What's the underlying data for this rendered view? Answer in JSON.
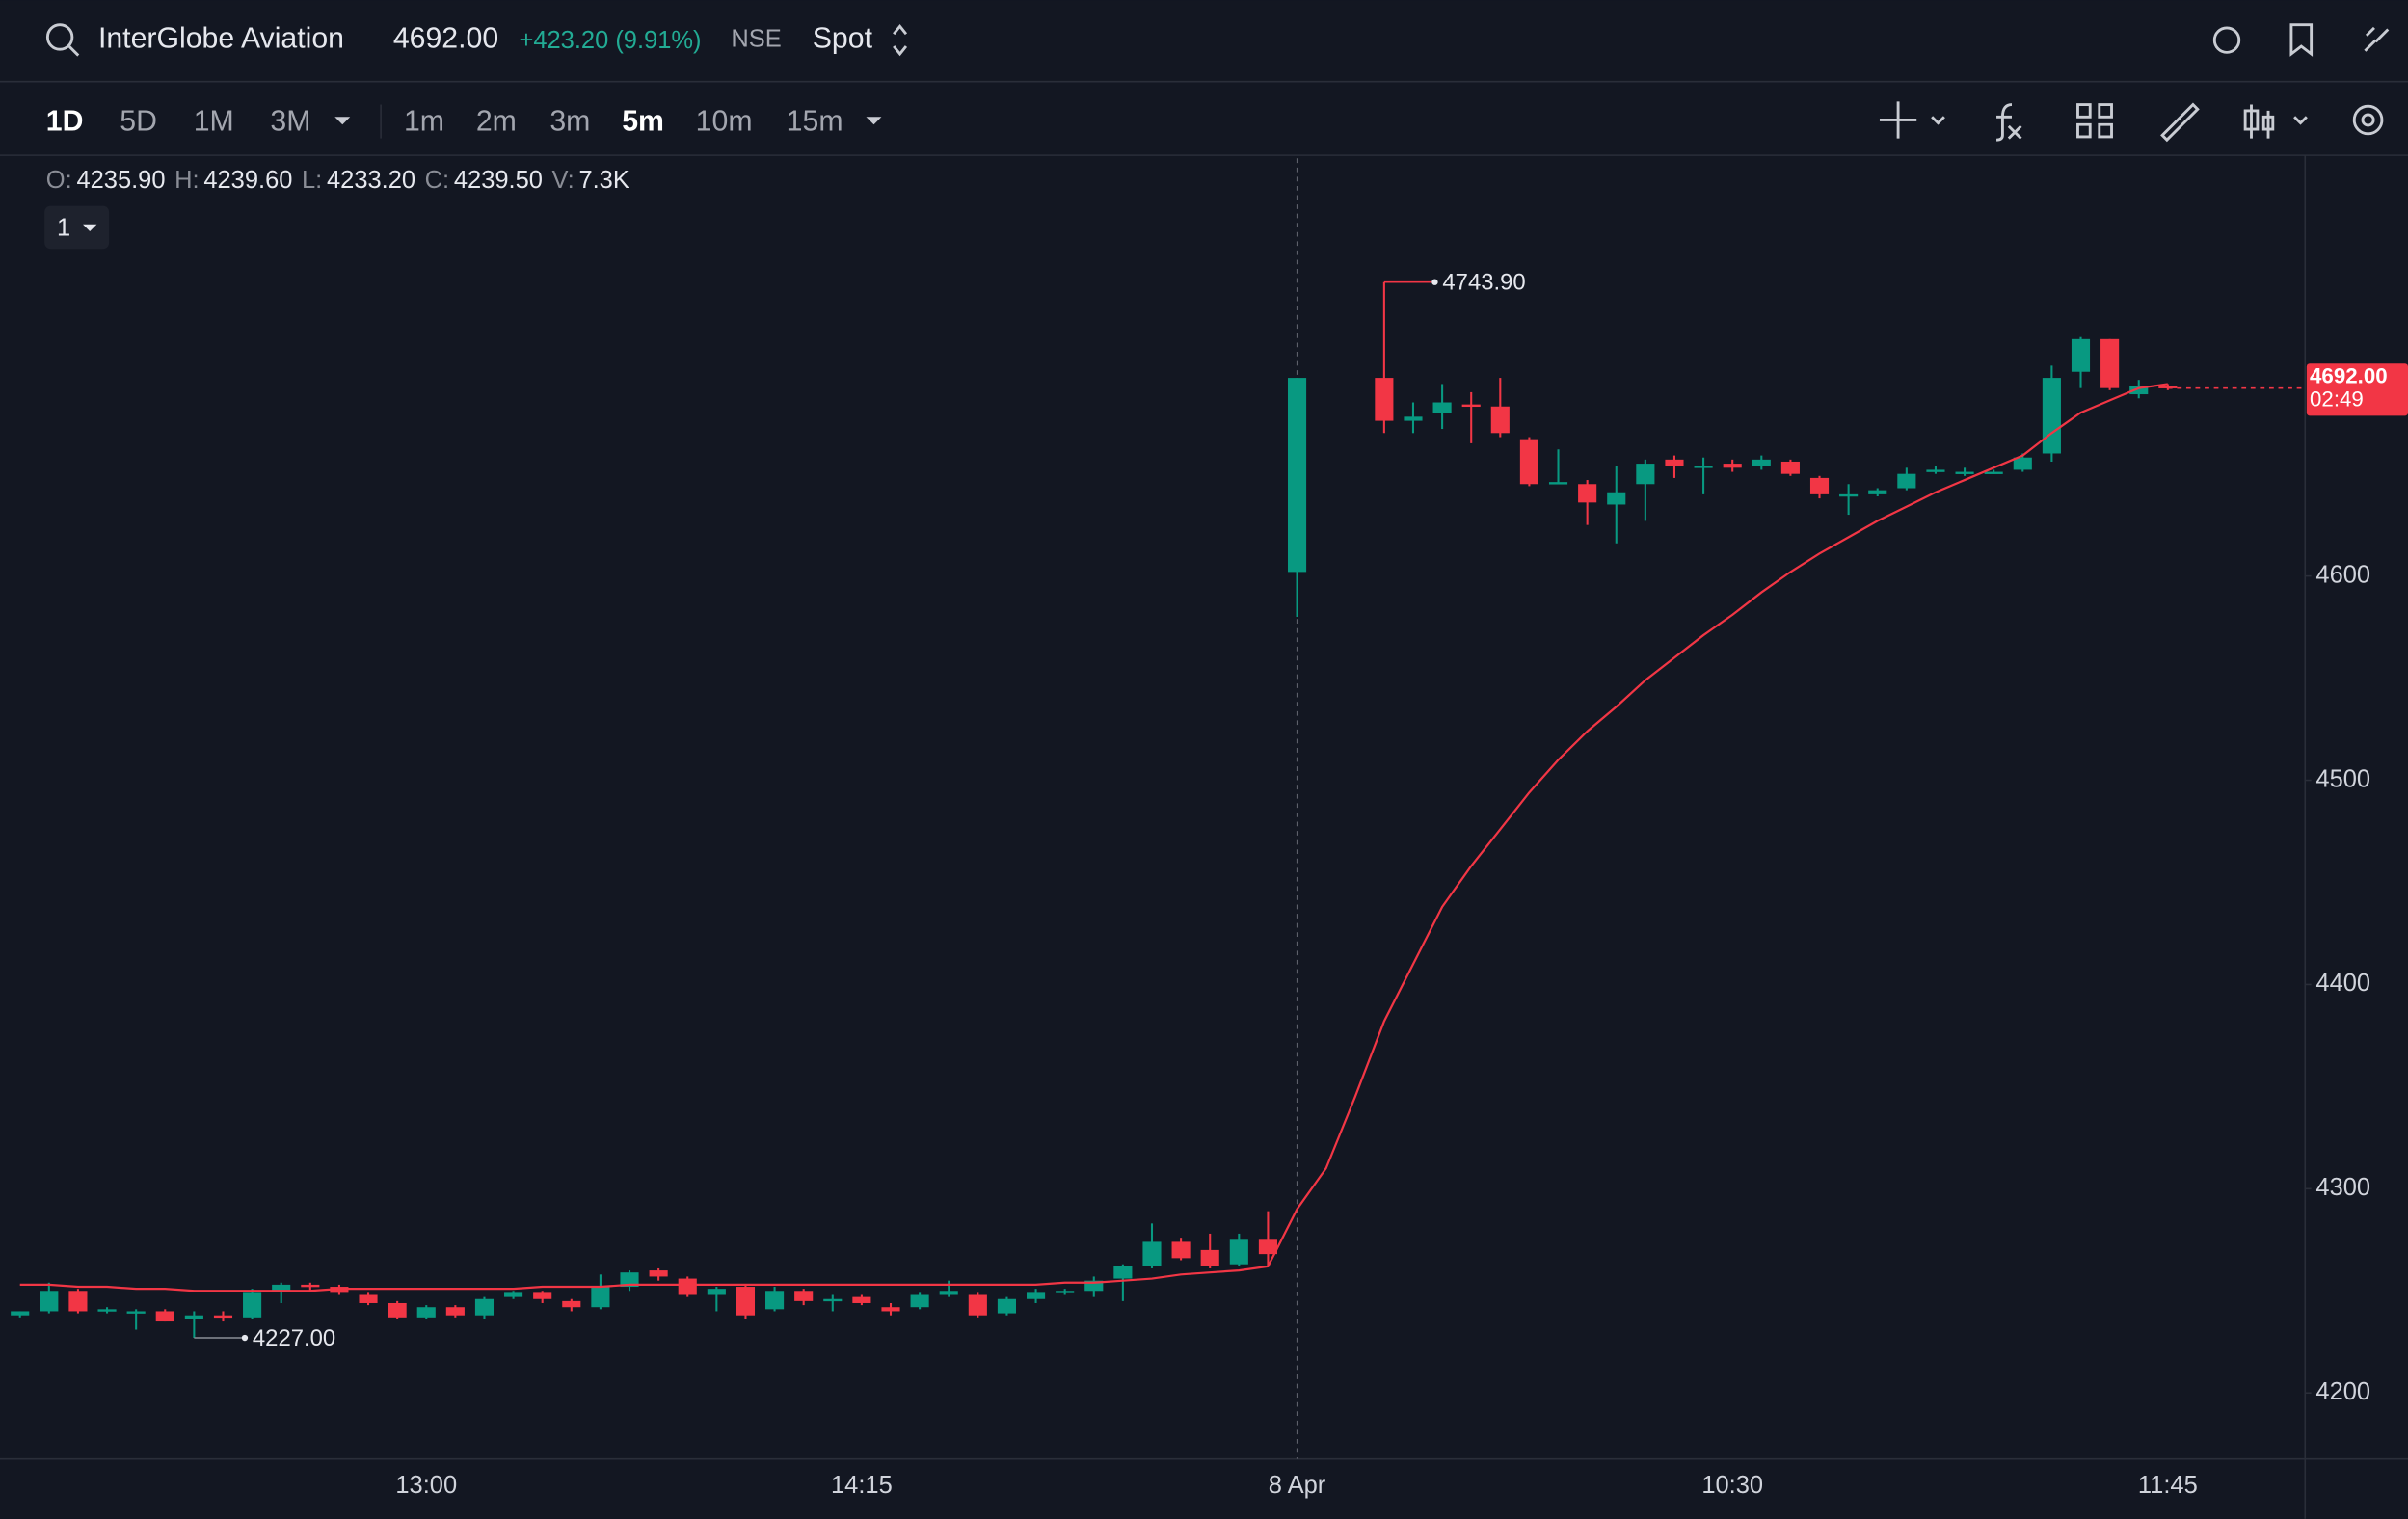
{
  "header": {
    "symbol": "InterGlobe Aviation",
    "price": "4692.00",
    "change": "+423.20 (9.91%)",
    "exchange": "NSE",
    "segment": "Spot"
  },
  "toolbar": {
    "ranges": [
      "1D",
      "5D",
      "1M",
      "3M"
    ],
    "intervals": [
      "1m",
      "2m",
      "3m",
      "5m",
      "10m",
      "15m"
    ]
  },
  "legend": {
    "open_label": "O:",
    "open": "4235.90",
    "high_label": "H:",
    "high": "4239.60",
    "low_label": "L:",
    "low": "4233.20",
    "close_label": "C:",
    "close": "4239.50",
    "volume_label": "V:",
    "volume": "7.3K",
    "pane": "1"
  },
  "chart_data": {
    "type": "candlestick",
    "categories": [
      null,
      null,
      null,
      null,
      null,
      null,
      null,
      null,
      null,
      null,
      null,
      null,
      null,
      null,
      "13:00",
      null,
      null,
      null,
      null,
      null,
      null,
      null,
      null,
      null,
      null,
      null,
      null,
      null,
      null,
      "14:15",
      null,
      null,
      null,
      null,
      null,
      null,
      null,
      null,
      null,
      null,
      null,
      null,
      null,
      null,
      "8 Apr",
      null,
      null,
      null,
      null,
      null,
      null,
      null,
      null,
      null,
      null,
      null,
      null,
      null,
      null,
      "10:30",
      null,
      null,
      null,
      null,
      null,
      null,
      null,
      null,
      null,
      null,
      null,
      null,
      null,
      null,
      "11:45"
    ],
    "open": [
      4238,
      4240,
      4250,
      4240,
      4240,
      4240,
      4236,
      4238,
      4237,
      4250,
      4253,
      4252,
      4248,
      4244,
      4237,
      4242,
      4238,
      4247,
      4249,
      4245,
      4242,
      4252,
      4260,
      4256,
      4248,
      4252,
      4241,
      4250,
      4245,
      4247,
      4242,
      4242,
      4248,
      4248,
      4239,
      4246,
      4249,
      4250,
      4256,
      4262,
      4274,
      4270,
      4263,
      4275,
      4602,
      null,
      null,
      4697,
      4676,
      4680,
      4684,
      4683,
      4667,
      4646,
      4645,
      4635,
      4645,
      4657,
      4654,
      4655,
      4654,
      4656,
      4648,
      4640,
      4640,
      4643,
      4651,
      4651,
      4651,
      4652,
      4660,
      4700,
      4716,
      4689,
      4693
    ],
    "high": [
      4240,
      4254,
      4251,
      4242,
      4241,
      4241,
      4240,
      4240,
      4251,
      4254,
      4254,
      4253,
      4249,
      4245,
      4243,
      4243,
      4247,
      4250,
      4250,
      4246,
      4258,
      4260,
      4261,
      4257,
      4252,
      4253,
      4252,
      4251,
      4248,
      4248,
      4244,
      4249,
      4255,
      4249,
      4247,
      4251,
      4251,
      4257,
      4263,
      4283,
      4276,
      4278,
      4278,
      4289,
      4697,
      null,
      null,
      4743.9,
      4685,
      4694,
      4690,
      4697,
      4668,
      4662,
      4647,
      4654,
      4657,
      4659,
      4658,
      4657,
      4659,
      4657,
      4649,
      4645,
      4643,
      4653,
      4654,
      4653,
      4652,
      4660,
      4703,
      4717,
      4716,
      4696,
      4694
    ],
    "low": [
      4237,
      4239,
      4239,
      4239,
      4231,
      4235,
      4227,
      4235,
      4236,
      4244,
      4250,
      4248,
      4243,
      4236,
      4236,
      4237,
      4236,
      4246,
      4244,
      4240,
      4241,
      4250,
      4255,
      4247,
      4240,
      4236,
      4240,
      4243,
      4240,
      4243,
      4238,
      4241,
      4247,
      4237,
      4238,
      4244,
      4248,
      4247,
      4245,
      4261,
      4265,
      4261,
      4262,
      4262,
      4580,
      null,
      null,
      4670,
      4670,
      4672,
      4665,
      4668,
      4644,
      4645,
      4625,
      4616,
      4627,
      4648,
      4640,
      4651,
      4652,
      4649,
      4638,
      4630,
      4639,
      4642,
      4650,
      4649,
      4650,
      4651,
      4656,
      4692,
      4691,
      4687,
      4691
    ],
    "close": [
      4240,
      4250,
      4240,
      4241,
      4240,
      4235,
      4238,
      4237,
      4249,
      4253,
      4252,
      4249,
      4244,
      4237,
      4242,
      4238,
      4246,
      4249,
      4246,
      4242,
      4252,
      4259,
      4257,
      4248,
      4251,
      4238,
      4250,
      4245,
      4246,
      4244,
      4240,
      4248,
      4250,
      4238,
      4246,
      4249,
      4250,
      4255,
      4262,
      4274,
      4266,
      4262,
      4275,
      4268,
      4697,
      null,
      null,
      4676,
      4678,
      4685,
      4683,
      4670,
      4645,
      4646,
      4636,
      4641,
      4655,
      4654,
      4654,
      4653,
      4657,
      4650,
      4640,
      4640,
      4642,
      4650,
      4652,
      4651,
      4651,
      4658,
      4697,
      4716,
      4692,
      4693,
      4692
    ],
    "ma": {
      "color": "#f23645",
      "values": [
        4253,
        4253,
        4252,
        4252,
        4251,
        4251,
        4250,
        4250,
        4250,
        4250,
        4250,
        4251,
        4251,
        4251,
        4251,
        4251,
        4251,
        4251,
        4252,
        4252,
        4252,
        4253,
        4253,
        4253,
        4253,
        4253,
        4253,
        4253,
        4253,
        4253,
        4253,
        4253,
        4253,
        4253,
        4253,
        4253,
        4254,
        4254,
        4255,
        4256,
        4258,
        4259,
        4260,
        4262,
        4290,
        4310,
        4345,
        4382,
        4410,
        4438,
        4458,
        4476,
        4494,
        4510,
        4524,
        4536,
        4549,
        4560,
        4571,
        4581,
        4592,
        4602,
        4611,
        4619,
        4627,
        4634,
        4641,
        4647,
        4653,
        4659,
        4670,
        4680,
        4686,
        4692,
        4694
      ]
    },
    "up_color": "#089981",
    "down_color": "#f23645",
    "ylim": [
      4167.7,
      4804.5
    ],
    "yticks": [
      4200,
      4300,
      4400,
      4500,
      4600
    ],
    "grid": false,
    "annotations": [
      {
        "text": "4743.90",
        "value": 4743.9,
        "field": "high"
      },
      {
        "text": "4227.00",
        "value": 4227,
        "field": "low"
      }
    ],
    "last_price": {
      "value": 4692,
      "label": "4692.00",
      "countdown": "02:49"
    }
  }
}
